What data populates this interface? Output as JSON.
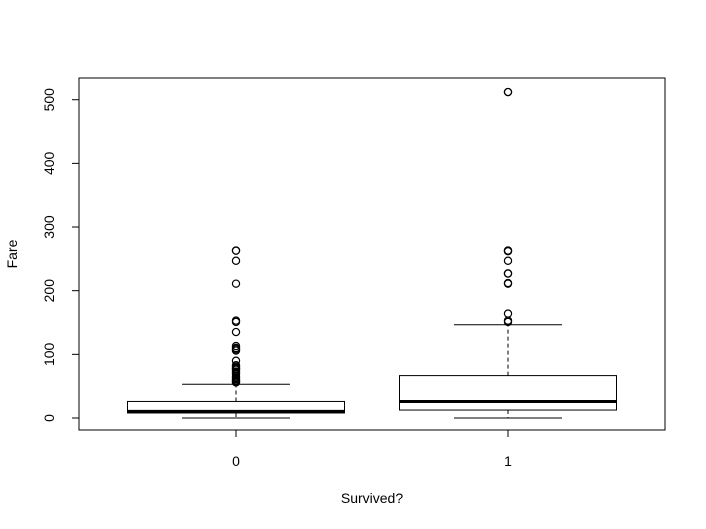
{
  "chart_data": {
    "type": "boxplot",
    "title": "",
    "xlabel": "Survived?",
    "ylabel": "Fare",
    "ylim": [
      -20,
      532
    ],
    "yticks": [
      0,
      100,
      200,
      300,
      400,
      500
    ],
    "yticklabels": [
      "0",
      "100",
      "200",
      "300",
      "400",
      "500"
    ],
    "categories": [
      "0",
      "1"
    ],
    "boxes": [
      {
        "category": "0",
        "whisker_low": 0,
        "q1": 7.9,
        "median": 10.5,
        "q3": 26,
        "whisker_high": 53,
        "outliers": [
          56,
          57,
          59,
          61,
          63,
          65,
          69,
          71,
          73,
          76,
          77,
          79,
          81,
          83,
          90,
          106,
          108,
          110,
          113,
          135,
          151,
          153,
          211,
          247,
          263,
          263
        ]
      },
      {
        "category": "1",
        "whisker_low": 0,
        "q1": 12.5,
        "median": 26,
        "q3": 66.6,
        "whisker_high": 146.5,
        "outliers": [
          151,
          153,
          164,
          211,
          212,
          227,
          227,
          247,
          262,
          263,
          263,
          512,
          512
        ]
      }
    ]
  }
}
